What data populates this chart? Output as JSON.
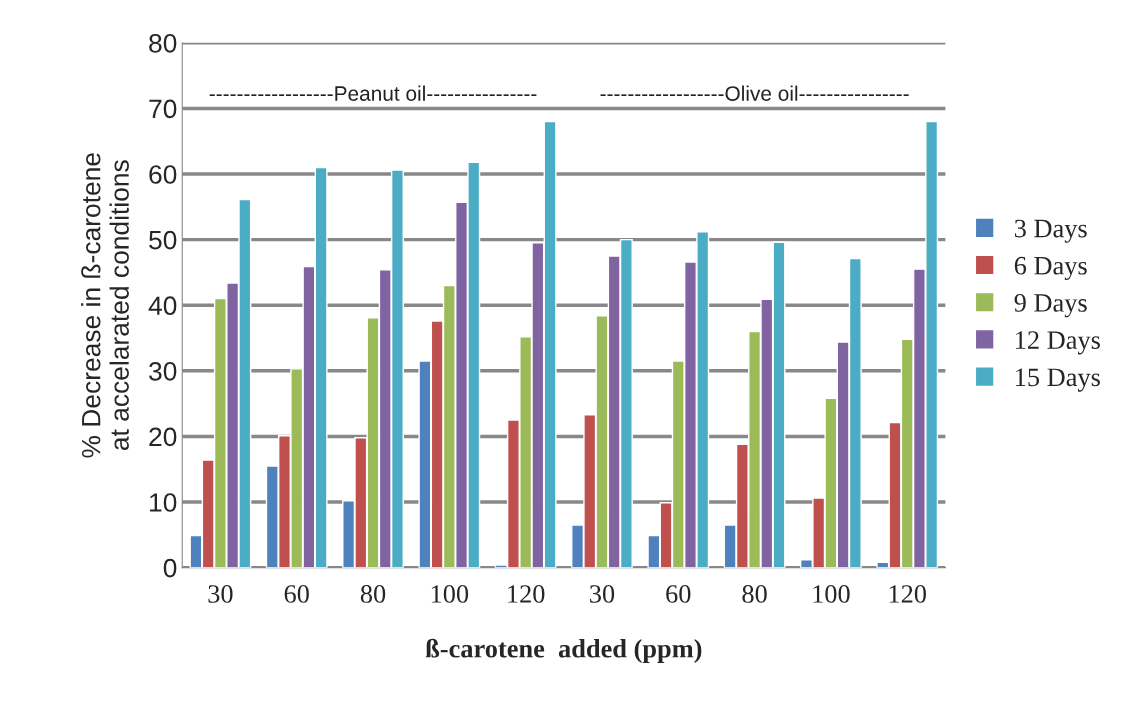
{
  "chart_data": {
    "type": "bar",
    "categories": [
      "30",
      "60",
      "80",
      "100",
      "120",
      "30",
      "60",
      "80",
      "100",
      "120"
    ],
    "series": [
      {
        "name": "3 Days",
        "color": "#4f81bd",
        "values": [
          4.9,
          15.5,
          10.2,
          31.5,
          0.4,
          6.5,
          4.9,
          6.5,
          1.2,
          0.8
        ]
      },
      {
        "name": "6 Days",
        "color": "#c0504d",
        "values": [
          16.4,
          20.1,
          19.8,
          37.6,
          22.5,
          23.3,
          9.9,
          18.8,
          10.6,
          22.1
        ]
      },
      {
        "name": "9 Days",
        "color": "#9bbb59",
        "values": [
          41.0,
          30.3,
          38.1,
          43.0,
          35.2,
          38.4,
          31.5,
          36.0,
          25.8,
          34.8
        ]
      },
      {
        "name": "12 Days",
        "color": "#8064a2",
        "values": [
          43.4,
          45.9,
          45.4,
          55.7,
          49.5,
          47.5,
          46.6,
          40.9,
          34.4,
          45.5
        ]
      },
      {
        "name": "15 Days",
        "color": "#4bacc6",
        "values": [
          56.1,
          61.0,
          60.6,
          61.8,
          68.0,
          50.0,
          51.2,
          49.6,
          47.1,
          68.0
        ]
      }
    ],
    "xlabel": "ß-carotene  added (ppm)",
    "ylabel": "% Decrease in ß-carotene\nat accelarated conditions",
    "ylim": [
      0,
      80
    ],
    "yticks": [
      0,
      10,
      20,
      30,
      40,
      50,
      60,
      70,
      80
    ],
    "grid": "y",
    "legend": "right",
    "annotations": [
      "------------------Peanut oil----------------",
      "------------------Olive oil----------------"
    ]
  }
}
